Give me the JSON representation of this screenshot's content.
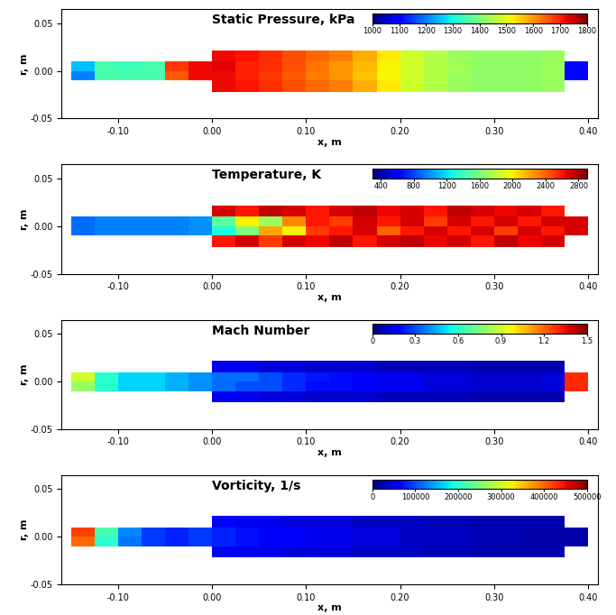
{
  "chart_data": [
    {
      "type": "heatmap",
      "title": "Static Pressure, kPa",
      "xlabel": "x, m",
      "ylabel": "r, m",
      "xlim": [
        -0.16,
        0.41
      ],
      "ylim": [
        -0.05,
        0.065
      ],
      "xticks": [
        {
          "value": -0.1,
          "label": "-0.10"
        },
        {
          "value": 0.0,
          "label": "0.00"
        },
        {
          "value": 0.1,
          "label": "0.10"
        },
        {
          "value": 0.2,
          "label": "0.20"
        },
        {
          "value": 0.3,
          "label": "0.30"
        },
        {
          "value": 0.4,
          "label": "0.40"
        }
      ],
      "yticks": [
        {
          "value": -0.05,
          "label": "-0.05"
        },
        {
          "value": 0.0,
          "label": "0.00"
        },
        {
          "value": 0.05,
          "label": "0.05"
        }
      ],
      "x_edges": [
        -0.15,
        -0.125,
        -0.1,
        -0.075,
        -0.05,
        -0.025,
        0.0,
        0.025,
        0.05,
        0.075,
        0.1,
        0.125,
        0.15,
        0.175,
        0.2,
        0.225,
        0.25,
        0.275,
        0.3,
        0.325,
        0.35,
        0.375,
        0.4
      ],
      "y_edges": [
        -0.022,
        -0.01,
        0.0,
        0.01,
        0.022
      ],
      "cells": [
        [
          null,
          null,
          null,
          null,
          null,
          null,
          1720,
          1710,
          1690,
          1660,
          1640,
          1620,
          1580,
          1530,
          1480,
          1450,
          1430,
          1420,
          1420,
          1420,
          1430,
          null
        ],
        [
          1200,
          1350,
          1350,
          1350,
          1650,
          1720,
          1720,
          1700,
          1680,
          1650,
          1620,
          1600,
          1560,
          1520,
          1480,
          1450,
          1430,
          1420,
          1420,
          1420,
          1430,
          1100
        ],
        [
          1250,
          1350,
          1340,
          1350,
          1680,
          1720,
          1730,
          1700,
          1690,
          1660,
          1630,
          1600,
          1570,
          1520,
          1480,
          1450,
          1440,
          1420,
          1420,
          1420,
          1430,
          1100
        ],
        [
          null,
          null,
          null,
          null,
          null,
          null,
          1720,
          1710,
          1690,
          1660,
          1640,
          1620,
          1580,
          1530,
          1480,
          1450,
          1430,
          1420,
          1420,
          1420,
          1430,
          null
        ]
      ],
      "color_range": [
        1000,
        1800
      ],
      "color_ticks": [
        1000,
        1100,
        1200,
        1300,
        1400,
        1500,
        1600,
        1700,
        1800
      ]
    },
    {
      "type": "heatmap",
      "title": "Temperature, K",
      "xlabel": "x, m",
      "ylabel": "r, m",
      "xlim": [
        -0.16,
        0.41
      ],
      "ylim": [
        -0.05,
        0.065
      ],
      "xticks": [
        {
          "value": -0.1,
          "label": "-0.10"
        },
        {
          "value": 0.0,
          "label": "0.00"
        },
        {
          "value": 0.1,
          "label": "0.10"
        },
        {
          "value": 0.2,
          "label": "0.20"
        },
        {
          "value": 0.3,
          "label": "0.30"
        },
        {
          "value": 0.4,
          "label": "0.40"
        }
      ],
      "yticks": [
        {
          "value": -0.05,
          "label": "-0.05"
        },
        {
          "value": 0.0,
          "label": "0.00"
        },
        {
          "value": 0.05,
          "label": "0.05"
        }
      ],
      "x_edges": [
        -0.15,
        -0.125,
        -0.1,
        -0.075,
        -0.05,
        -0.025,
        0.0,
        0.025,
        0.05,
        0.075,
        0.1,
        0.125,
        0.15,
        0.175,
        0.2,
        0.225,
        0.25,
        0.275,
        0.3,
        0.325,
        0.35,
        0.375,
        0.4
      ],
      "y_edges": [
        -0.022,
        -0.01,
        0.0,
        0.01,
        0.022
      ],
      "cells": [
        [
          null,
          null,
          null,
          null,
          null,
          null,
          2600,
          2700,
          2500,
          2700,
          2650,
          2750,
          2600,
          2700,
          2750,
          2650,
          2700,
          2600,
          2750,
          2650,
          2700,
          null
        ],
        [
          900,
          950,
          950,
          950,
          950,
          1000,
          1300,
          1600,
          2200,
          2000,
          2500,
          2600,
          2700,
          2400,
          2600,
          2700,
          2600,
          2700,
          2500,
          2700,
          2600,
          2700
        ],
        [
          900,
          950,
          950,
          950,
          950,
          1000,
          1500,
          2000,
          1700,
          2300,
          2600,
          2500,
          2700,
          2600,
          2700,
          2500,
          2700,
          2600,
          2700,
          2600,
          2700,
          2700
        ],
        [
          null,
          null,
          null,
          null,
          null,
          null,
          2700,
          2600,
          2750,
          2700,
          2600,
          2700,
          2750,
          2650,
          2700,
          2600,
          2750,
          2700,
          2650,
          2700,
          2600,
          null
        ]
      ],
      "color_range": [
        300,
        2900
      ],
      "color_ticks": [
        400,
        800,
        1200,
        1600,
        2000,
        2400,
        2800
      ]
    },
    {
      "type": "heatmap",
      "title": "Mach Number",
      "xlabel": "x, m",
      "ylabel": "r, m",
      "xlim": [
        -0.16,
        0.41
      ],
      "ylim": [
        -0.05,
        0.065
      ],
      "xticks": [
        {
          "value": -0.1,
          "label": "-0.10"
        },
        {
          "value": 0.0,
          "label": "0.00"
        },
        {
          "value": 0.1,
          "label": "0.10"
        },
        {
          "value": 0.2,
          "label": "0.20"
        },
        {
          "value": 0.3,
          "label": "0.30"
        },
        {
          "value": 0.4,
          "label": "0.40"
        }
      ],
      "yticks": [
        {
          "value": -0.05,
          "label": "-0.05"
        },
        {
          "value": 0.0,
          "label": "0.00"
        },
        {
          "value": 0.05,
          "label": "0.05"
        }
      ],
      "x_edges": [
        -0.15,
        -0.125,
        -0.1,
        -0.075,
        -0.05,
        -0.025,
        0.0,
        0.025,
        0.05,
        0.075,
        0.1,
        0.125,
        0.15,
        0.175,
        0.2,
        0.225,
        0.25,
        0.275,
        0.3,
        0.325,
        0.35,
        0.375,
        0.4
      ],
      "y_edges": [
        -0.022,
        -0.01,
        0.0,
        0.01,
        0.022
      ],
      "cells": [
        [
          null,
          null,
          null,
          null,
          null,
          null,
          0.15,
          0.15,
          0.12,
          0.12,
          0.1,
          0.1,
          0.1,
          0.08,
          0.08,
          0.08,
          0.08,
          0.06,
          0.06,
          0.06,
          0.06,
          null
        ],
        [
          0.8,
          0.6,
          0.5,
          0.5,
          0.45,
          0.4,
          0.35,
          0.3,
          0.3,
          0.25,
          0.2,
          0.2,
          0.18,
          0.15,
          0.15,
          0.12,
          0.12,
          0.1,
          0.1,
          0.1,
          0.12,
          1.3
        ],
        [
          0.9,
          0.6,
          0.5,
          0.5,
          0.45,
          0.4,
          0.35,
          0.35,
          0.3,
          0.25,
          0.22,
          0.2,
          0.18,
          0.15,
          0.15,
          0.12,
          0.12,
          0.1,
          0.1,
          0.1,
          0.12,
          1.3
        ],
        [
          null,
          null,
          null,
          null,
          null,
          null,
          0.15,
          0.15,
          0.12,
          0.12,
          0.1,
          0.1,
          0.1,
          0.08,
          0.08,
          0.08,
          0.08,
          0.06,
          0.06,
          0.06,
          0.06,
          null
        ]
      ],
      "color_range": [
        0,
        1.5
      ],
      "color_ticks": [
        0,
        0.3,
        0.6,
        0.9,
        1.2,
        1.5
      ]
    },
    {
      "type": "heatmap",
      "title": "Vorticity, 1/s",
      "xlabel": "x, m",
      "ylabel": "r, m",
      "xlim": [
        -0.16,
        0.41
      ],
      "ylim": [
        -0.05,
        0.065
      ],
      "xticks": [
        {
          "value": -0.1,
          "label": "-0.10"
        },
        {
          "value": 0.0,
          "label": "0.00"
        },
        {
          "value": 0.1,
          "label": "0.10"
        },
        {
          "value": 0.2,
          "label": "0.20"
        },
        {
          "value": 0.3,
          "label": "0.30"
        },
        {
          "value": 0.4,
          "label": "0.40"
        }
      ],
      "yticks": [
        {
          "value": -0.05,
          "label": "-0.05"
        },
        {
          "value": 0.0,
          "label": "0.00"
        },
        {
          "value": 0.05,
          "label": "0.05"
        }
      ],
      "x_edges": [
        -0.15,
        -0.125,
        -0.1,
        -0.075,
        -0.05,
        -0.025,
        0.0,
        0.025,
        0.05,
        0.075,
        0.1,
        0.125,
        0.15,
        0.175,
        0.2,
        0.225,
        0.25,
        0.275,
        0.3,
        0.325,
        0.35,
        0.375,
        0.4
      ],
      "y_edges": [
        -0.022,
        -0.01,
        0.0,
        0.01,
        0.022
      ],
      "cells": [
        [
          null,
          null,
          null,
          null,
          null,
          null,
          60000,
          50000,
          50000,
          40000,
          40000,
          40000,
          30000,
          30000,
          30000,
          25000,
          25000,
          20000,
          20000,
          20000,
          20000,
          null
        ],
        [
          400000,
          200000,
          120000,
          90000,
          80000,
          90000,
          80000,
          70000,
          60000,
          60000,
          50000,
          50000,
          40000,
          40000,
          30000,
          30000,
          30000,
          25000,
          25000,
          20000,
          20000,
          20000
        ],
        [
          420000,
          220000,
          130000,
          90000,
          80000,
          90000,
          80000,
          70000,
          60000,
          60000,
          50000,
          50000,
          40000,
          40000,
          30000,
          30000,
          30000,
          25000,
          25000,
          20000,
          20000,
          20000
        ],
        [
          null,
          null,
          null,
          null,
          null,
          null,
          60000,
          50000,
          50000,
          40000,
          40000,
          40000,
          30000,
          30000,
          30000,
          25000,
          25000,
          20000,
          20000,
          20000,
          20000,
          null
        ]
      ],
      "color_range": [
        0,
        500000
      ],
      "color_ticks": [
        0,
        100000,
        200000,
        300000,
        400000,
        500000
      ]
    }
  ]
}
